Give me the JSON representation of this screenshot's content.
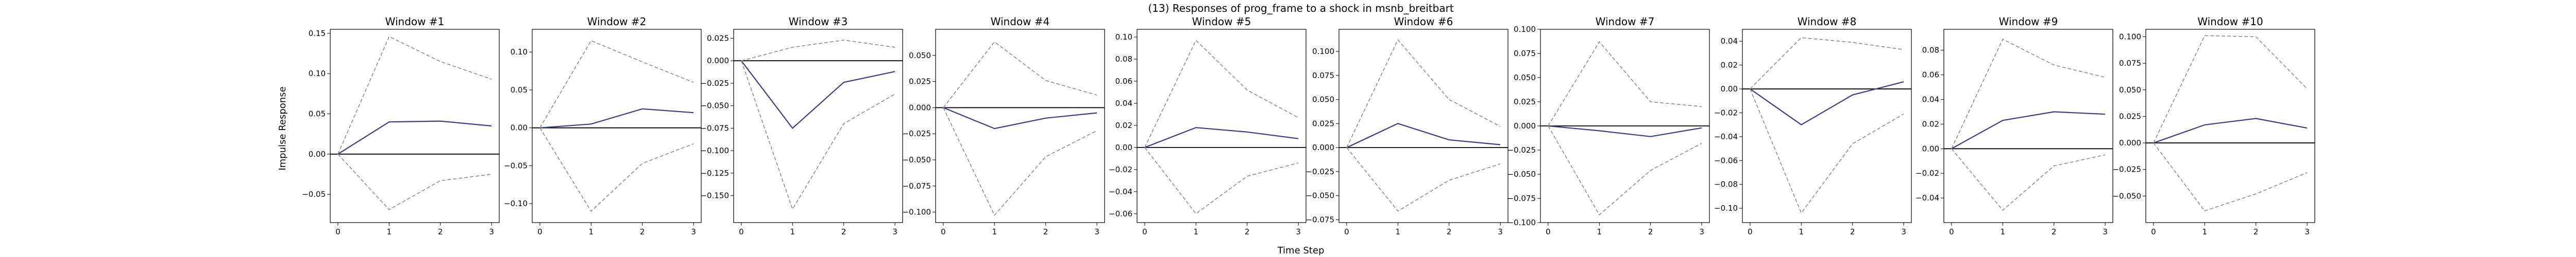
{
  "figure": {
    "title": "(13) Responses of prog_frame to a shock in msnb_breitbart",
    "xlabel": "Time Step",
    "ylabel": "Impulse Response"
  },
  "colors": {
    "response": "#3b3b8a",
    "bounds": "#8c8c8c",
    "zero": "#000000",
    "frame": "#000000"
  },
  "chart_data": [
    {
      "type": "line",
      "title": "Window #1",
      "x": [
        0,
        1,
        2,
        3
      ],
      "xticks": [
        0,
        1,
        2,
        3
      ],
      "ylim": [
        -0.085,
        0.155
      ],
      "yticks": [
        -0.05,
        0.0,
        0.05,
        0.1,
        0.15
      ],
      "yticklabels": [
        "−0.05",
        "0.00",
        "0.05",
        "0.10",
        "0.15"
      ],
      "series": [
        {
          "role": "response",
          "values": [
            0,
            0.04,
            0.041,
            0.035
          ]
        },
        {
          "role": "upper",
          "values": [
            0,
            0.146,
            0.115,
            0.093
          ]
        },
        {
          "role": "lower",
          "values": [
            0,
            -0.069,
            -0.033,
            -0.025
          ]
        }
      ]
    },
    {
      "type": "line",
      "title": "Window #2",
      "x": [
        0,
        1,
        2,
        3
      ],
      "xticks": [
        0,
        1,
        2,
        3
      ],
      "ylim": [
        -0.125,
        0.13
      ],
      "yticks": [
        -0.1,
        -0.05,
        0.0,
        0.05,
        0.1
      ],
      "yticklabels": [
        "−0.10",
        "−0.05",
        "0.00",
        "0.05",
        "0.10"
      ],
      "series": [
        {
          "role": "response",
          "values": [
            0,
            0.005,
            0.025,
            0.02
          ]
        },
        {
          "role": "upper",
          "values": [
            0,
            0.115,
            0.087,
            0.06
          ]
        },
        {
          "role": "lower",
          "values": [
            0,
            -0.11,
            -0.047,
            -0.021
          ]
        }
      ]
    },
    {
      "type": "line",
      "title": "Window #3",
      "x": [
        0,
        1,
        2,
        3
      ],
      "xticks": [
        0,
        1,
        2,
        3
      ],
      "ylim": [
        -0.18,
        0.035
      ],
      "yticks": [
        -0.15,
        -0.125,
        -0.1,
        -0.075,
        -0.05,
        -0.025,
        0.0,
        0.025
      ],
      "yticklabels": [
        "−0.150",
        "−0.125",
        "−0.100",
        "−0.075",
        "−0.050",
        "−0.025",
        "0.000",
        "0.025"
      ],
      "series": [
        {
          "role": "response",
          "values": [
            0,
            -0.075,
            -0.024,
            -0.012
          ]
        },
        {
          "role": "upper",
          "values": [
            0,
            0.015,
            0.023,
            0.015
          ]
        },
        {
          "role": "lower",
          "values": [
            0,
            -0.165,
            -0.07,
            -0.037
          ]
        }
      ]
    },
    {
      "type": "line",
      "title": "Window #4",
      "x": [
        0,
        1,
        2,
        3
      ],
      "xticks": [
        0,
        1,
        2,
        3
      ],
      "ylim": [
        -0.11,
        0.075
      ],
      "yticks": [
        -0.1,
        -0.075,
        -0.05,
        -0.025,
        0.0,
        0.025,
        0.05
      ],
      "yticklabels": [
        "−0.100",
        "−0.075",
        "−0.050",
        "−0.025",
        "0.000",
        "0.025",
        "0.050"
      ],
      "series": [
        {
          "role": "response",
          "values": [
            0,
            -0.02,
            -0.01,
            -0.005
          ]
        },
        {
          "role": "upper",
          "values": [
            0,
            0.063,
            0.026,
            0.012
          ]
        },
        {
          "role": "lower",
          "values": [
            0,
            -0.103,
            -0.047,
            -0.022
          ]
        }
      ]
    },
    {
      "type": "line",
      "title": "Window #5",
      "x": [
        0,
        1,
        2,
        3
      ],
      "xticks": [
        0,
        1,
        2,
        3
      ],
      "ylim": [
        -0.068,
        0.107
      ],
      "yticks": [
        -0.06,
        -0.04,
        -0.02,
        0.0,
        0.02,
        0.04,
        0.06,
        0.08,
        0.1
      ],
      "yticklabels": [
        "−0.06",
        "−0.04",
        "−0.02",
        "0.00",
        "0.02",
        "0.04",
        "0.06",
        "0.08",
        "0.10"
      ],
      "series": [
        {
          "role": "response",
          "values": [
            0,
            0.018,
            0.014,
            0.008
          ]
        },
        {
          "role": "upper",
          "values": [
            0,
            0.097,
            0.052,
            0.027
          ]
        },
        {
          "role": "lower",
          "values": [
            0,
            -0.06,
            -0.026,
            -0.014
          ]
        }
      ]
    },
    {
      "type": "line",
      "title": "Window #6",
      "x": [
        0,
        1,
        2,
        3
      ],
      "xticks": [
        0,
        1,
        2,
        3
      ],
      "ylim": [
        -0.078,
        0.123
      ],
      "yticks": [
        -0.075,
        -0.05,
        -0.025,
        0.0,
        0.025,
        0.05,
        0.075,
        0.1
      ],
      "yticklabels": [
        "−0.075",
        "−0.050",
        "−0.025",
        "0.000",
        "0.025",
        "0.050",
        "0.075",
        "0.100"
      ],
      "series": [
        {
          "role": "response",
          "values": [
            0,
            0.025,
            0.008,
            0.003
          ]
        },
        {
          "role": "upper",
          "values": [
            0,
            0.112,
            0.05,
            0.022
          ]
        },
        {
          "role": "lower",
          "values": [
            0,
            -0.066,
            -0.034,
            -0.017
          ]
        }
      ]
    },
    {
      "type": "line",
      "title": "Window #7",
      "x": [
        0,
        1,
        2,
        3
      ],
      "xticks": [
        0,
        1,
        2,
        3
      ],
      "ylim": [
        -0.1,
        0.1
      ],
      "yticks": [
        -0.1,
        -0.075,
        -0.05,
        -0.025,
        0.0,
        0.025,
        0.05,
        0.075,
        0.1
      ],
      "yticklabels": [
        "−0.100",
        "−0.075",
        "−0.050",
        "−0.025",
        "0.000",
        "0.025",
        "0.050",
        "0.075",
        "0.100"
      ],
      "series": [
        {
          "role": "response",
          "values": [
            0,
            -0.005,
            -0.011,
            -0.002
          ]
        },
        {
          "role": "upper",
          "values": [
            0,
            0.087,
            0.025,
            0.02
          ]
        },
        {
          "role": "lower",
          "values": [
            0,
            -0.092,
            -0.046,
            -0.018
          ]
        }
      ]
    },
    {
      "type": "line",
      "title": "Window #8",
      "x": [
        0,
        1,
        2,
        3
      ],
      "xticks": [
        0,
        1,
        2,
        3
      ],
      "ylim": [
        -0.112,
        0.05
      ],
      "yticks": [
        -0.1,
        -0.08,
        -0.06,
        -0.04,
        -0.02,
        0.0,
        0.02,
        0.04
      ],
      "yticklabels": [
        "−0.10",
        "−0.08",
        "−0.06",
        "−0.04",
        "−0.02",
        "0.00",
        "0.02",
        "0.04"
      ],
      "series": [
        {
          "role": "response",
          "values": [
            0,
            -0.03,
            -0.005,
            0.006
          ]
        },
        {
          "role": "upper",
          "values": [
            0,
            0.043,
            0.039,
            0.033
          ]
        },
        {
          "role": "lower",
          "values": [
            0,
            -0.104,
            -0.046,
            -0.021
          ]
        }
      ]
    },
    {
      "type": "line",
      "title": "Window #9",
      "x": [
        0,
        1,
        2,
        3
      ],
      "xticks": [
        0,
        1,
        2,
        3
      ],
      "ylim": [
        -0.06,
        0.097
      ],
      "yticks": [
        -0.04,
        -0.02,
        0.0,
        0.02,
        0.04,
        0.06,
        0.08
      ],
      "yticklabels": [
        "−0.04",
        "−0.02",
        "0.00",
        "0.02",
        "0.04",
        "0.06",
        "0.08"
      ],
      "series": [
        {
          "role": "response",
          "values": [
            0,
            0.023,
            0.03,
            0.028
          ]
        },
        {
          "role": "upper",
          "values": [
            0,
            0.089,
            0.068,
            0.058
          ]
        },
        {
          "role": "lower",
          "values": [
            0,
            -0.05,
            -0.014,
            -0.005
          ]
        }
      ]
    },
    {
      "type": "line",
      "title": "Window #10",
      "x": [
        0,
        1,
        2,
        3
      ],
      "xticks": [
        0,
        1,
        2,
        3
      ],
      "ylim": [
        -0.075,
        0.107
      ],
      "yticks": [
        -0.05,
        -0.025,
        0.0,
        0.025,
        0.05,
        0.075,
        0.1
      ],
      "yticklabels": [
        "−0.050",
        "−0.025",
        "0.000",
        "0.025",
        "0.050",
        "0.075",
        "0.100"
      ],
      "series": [
        {
          "role": "response",
          "values": [
            0,
            0.017,
            0.023,
            0.014
          ]
        },
        {
          "role": "upper",
          "values": [
            0,
            0.101,
            0.1,
            0.051
          ]
        },
        {
          "role": "lower",
          "values": [
            0,
            -0.064,
            -0.048,
            -0.028
          ]
        }
      ]
    }
  ]
}
